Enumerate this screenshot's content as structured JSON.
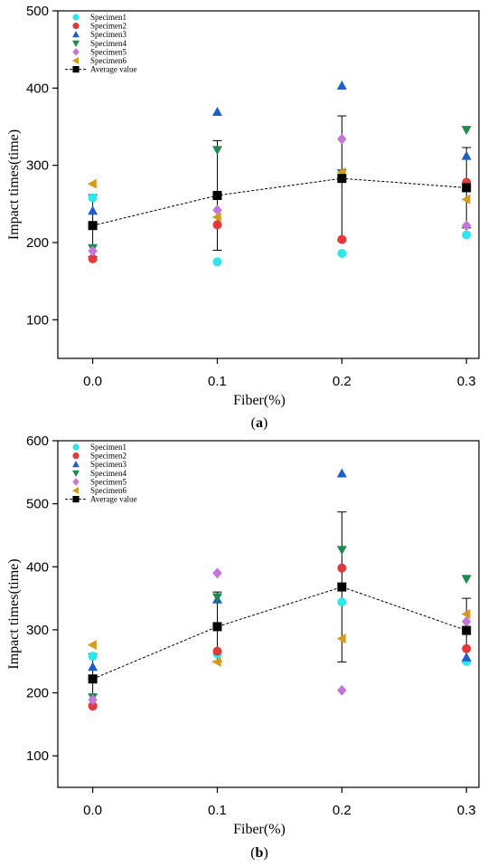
{
  "colors": {
    "Specimen1": "#2fe6ec",
    "Specimen2": "#e23a3a",
    "Specimen3": "#1f5fc8",
    "Specimen4": "#1c8c4a",
    "Specimen5": "#c477d6",
    "Specimen6": "#d79a1c",
    "Average value": "#000000"
  },
  "chart_data": [
    {
      "type": "scatter",
      "caption_pre": "(",
      "caption_letter": "a",
      "caption_post": ")",
      "xlabel": "Fiber(%)",
      "ylabel": "Impact times(time)",
      "x_ticks": [
        "0.0",
        "0.1",
        "0.2",
        "0.3"
      ],
      "x": [
        0.0,
        0.1,
        0.2,
        0.3
      ],
      "xlim": [
        -0.028,
        0.31
      ],
      "ylim": [
        50,
        500
      ],
      "y_ticks": [
        100,
        200,
        300,
        400,
        500
      ],
      "series": [
        {
          "name": "Specimen1",
          "marker": "circle",
          "values": [
            258,
            175,
            186,
            210
          ]
        },
        {
          "name": "Specimen2",
          "marker": "circle",
          "values": [
            179,
            223,
            204,
            278
          ]
        },
        {
          "name": "Specimen3",
          "marker": "triangle-up",
          "values": [
            241,
            369,
            403,
            312
          ]
        },
        {
          "name": "Specimen4",
          "marker": "triangle-down",
          "values": [
            193,
            320,
            290,
            346
          ]
        },
        {
          "name": "Specimen5",
          "marker": "diamond",
          "values": [
            189,
            242,
            334,
            222
          ]
        },
        {
          "name": "Specimen6",
          "marker": "triangle-left",
          "values": [
            276,
            233,
            291,
            256
          ]
        },
        {
          "name": "Average value",
          "marker": "square",
          "line": "dashed",
          "values": [
            222,
            261,
            283,
            271
          ],
          "error": [
            40,
            71,
            81,
            52
          ]
        }
      ]
    },
    {
      "type": "scatter",
      "caption_pre": "(",
      "caption_letter": "b",
      "caption_post": ")",
      "xlabel": "Fiber(%)",
      "ylabel": "Impact times(time)",
      "x_ticks": [
        "0.0",
        "0.1",
        "0.2",
        "0.3"
      ],
      "x": [
        0.0,
        0.1,
        0.2,
        0.3
      ],
      "xlim": [
        -0.028,
        0.31
      ],
      "ylim": [
        50,
        600
      ],
      "y_ticks": [
        100,
        200,
        300,
        400,
        500,
        600
      ],
      "series": [
        {
          "name": "Specimen1",
          "marker": "circle",
          "values": [
            258,
            262,
            344,
            250
          ]
        },
        {
          "name": "Specimen2",
          "marker": "circle",
          "values": [
            179,
            266,
            398,
            270
          ]
        },
        {
          "name": "Specimen3",
          "marker": "triangle-up",
          "values": [
            241,
            348,
            548,
            256
          ]
        },
        {
          "name": "Specimen4",
          "marker": "triangle-down",
          "values": [
            193,
            352,
            427,
            381
          ]
        },
        {
          "name": "Specimen5",
          "marker": "diamond",
          "values": [
            189,
            390,
            204,
            313
          ]
        },
        {
          "name": "Specimen6",
          "marker": "triangle-left",
          "values": [
            276,
            249,
            286,
            325
          ]
        },
        {
          "name": "Average value",
          "marker": "square",
          "line": "dashed",
          "values": [
            222,
            305,
            368,
            299
          ],
          "error": [
            40,
            55,
            119,
            51
          ]
        }
      ]
    }
  ]
}
